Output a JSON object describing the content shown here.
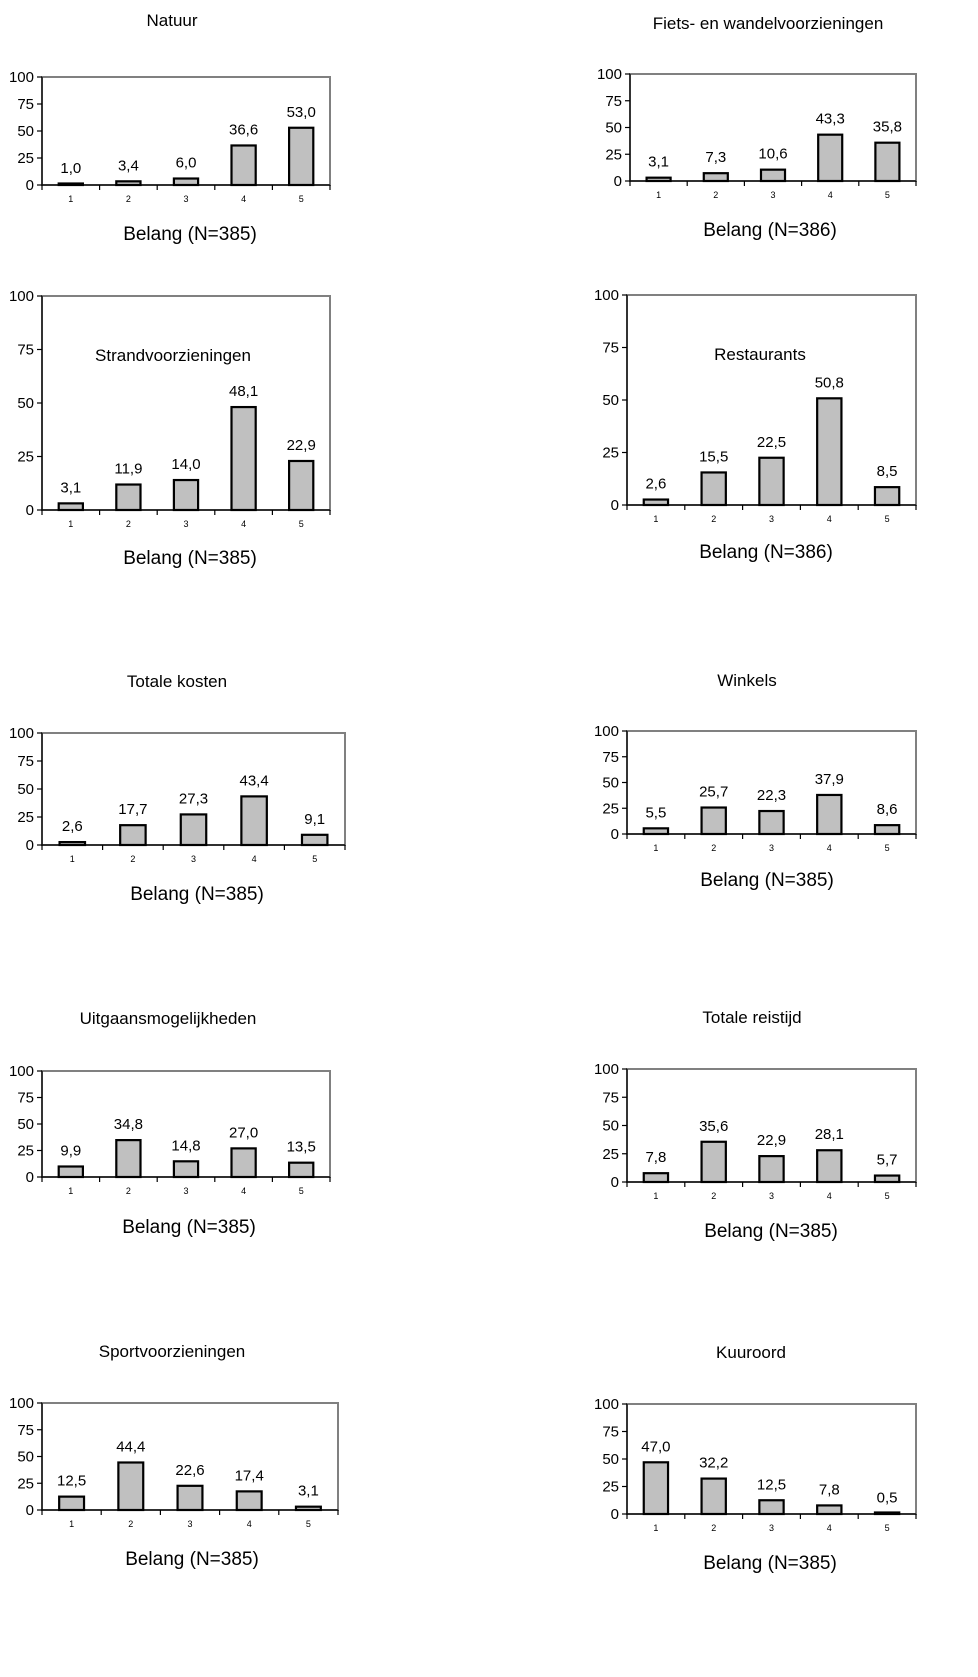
{
  "chart_data": [
    {
      "type": "bar",
      "title": "Natuur",
      "xlabel": "Belang (N=385)",
      "categories": [
        "1",
        "2",
        "3",
        "4",
        "5"
      ],
      "values": [
        1.0,
        3.4,
        6.0,
        36.6,
        53.0
      ],
      "value_labels": [
        "1,0",
        "3,4",
        "6,0",
        "36,6",
        "53,0"
      ],
      "yticks": [
        "0",
        "25",
        "50",
        "75",
        "100"
      ],
      "ylim": [
        0,
        100
      ],
      "grid": false,
      "legend": false
    },
    {
      "type": "bar",
      "title": "Fiets- en wandelvoorzieningen",
      "xlabel": "Belang (N=386)",
      "categories": [
        "1",
        "2",
        "3",
        "4",
        "5"
      ],
      "values": [
        3.1,
        7.3,
        10.6,
        43.3,
        35.8
      ],
      "value_labels": [
        "3,1",
        "7,3",
        "10,6",
        "43,3",
        "35,8"
      ],
      "yticks": [
        "0",
        "25",
        "50",
        "75",
        "100"
      ],
      "ylim": [
        0,
        100
      ],
      "grid": false,
      "legend": false
    },
    {
      "type": "bar",
      "title": "Strandvoorzieningen",
      "xlabel": "Belang (N=385)",
      "categories": [
        "1",
        "2",
        "3",
        "4",
        "5"
      ],
      "values": [
        3.1,
        11.9,
        14.0,
        48.1,
        22.9
      ],
      "value_labels": [
        "3,1",
        "11,9",
        "14,0",
        "48,1",
        "22,9"
      ],
      "yticks": [
        "0",
        "25",
        "50",
        "75",
        "100"
      ],
      "ylim": [
        0,
        100
      ],
      "grid": false,
      "legend": false
    },
    {
      "type": "bar",
      "title": "Restaurants",
      "xlabel": "Belang (N=386)",
      "categories": [
        "1",
        "2",
        "3",
        "4",
        "5"
      ],
      "values": [
        2.6,
        15.5,
        22.5,
        50.8,
        8.5
      ],
      "value_labels": [
        "2,6",
        "15,5",
        "22,5",
        "50,8",
        "8,5"
      ],
      "yticks": [
        "0",
        "25",
        "50",
        "75",
        "100"
      ],
      "ylim": [
        0,
        100
      ],
      "grid": false,
      "legend": false
    },
    {
      "type": "bar",
      "title": "Totale kosten",
      "xlabel": "Belang (N=385)",
      "categories": [
        "1",
        "2",
        "3",
        "4",
        "5"
      ],
      "values": [
        2.6,
        17.7,
        27.3,
        43.4,
        9.1
      ],
      "value_labels": [
        "2,6",
        "17,7",
        "27,3",
        "43,4",
        "9,1"
      ],
      "yticks": [
        "0",
        "25",
        "50",
        "75",
        "100"
      ],
      "ylim": [
        0,
        100
      ],
      "grid": false,
      "legend": false
    },
    {
      "type": "bar",
      "title": "Winkels",
      "xlabel": "Belang (N=385)",
      "categories": [
        "1",
        "2",
        "3",
        "4",
        "5"
      ],
      "values": [
        5.5,
        25.7,
        22.3,
        37.9,
        8.6
      ],
      "value_labels": [
        "5,5",
        "25,7",
        "22,3",
        "37,9",
        "8,6"
      ],
      "yticks": [
        "0",
        "25",
        "50",
        "75",
        "100"
      ],
      "ylim": [
        0,
        100
      ],
      "grid": false,
      "legend": false
    },
    {
      "type": "bar",
      "title": "Uitgaansmogelijkheden",
      "xlabel": "Belang (N=385)",
      "categories": [
        "1",
        "2",
        "3",
        "4",
        "5"
      ],
      "values": [
        9.9,
        34.8,
        14.8,
        27.0,
        13.5
      ],
      "value_labels": [
        "9,9",
        "34,8",
        "14,8",
        "27,0",
        "13,5"
      ],
      "yticks": [
        "0",
        "25",
        "50",
        "75",
        "100"
      ],
      "ylim": [
        0,
        100
      ],
      "grid": false,
      "legend": false
    },
    {
      "type": "bar",
      "title": "Totale reistijd",
      "xlabel": "Belang (N=385)",
      "categories": [
        "1",
        "2",
        "3",
        "4",
        "5"
      ],
      "values": [
        7.8,
        35.6,
        22.9,
        28.1,
        5.7
      ],
      "value_labels": [
        "7,8",
        "35,6",
        "22,9",
        "28,1",
        "5,7"
      ],
      "yticks": [
        "0",
        "25",
        "50",
        "75",
        "100"
      ],
      "ylim": [
        0,
        100
      ],
      "grid": false,
      "legend": false
    },
    {
      "type": "bar",
      "title": "Sportvoorzieningen",
      "xlabel": "Belang (N=385)",
      "categories": [
        "1",
        "2",
        "3",
        "4",
        "5"
      ],
      "values": [
        12.5,
        44.4,
        22.6,
        17.4,
        3.1
      ],
      "value_labels": [
        "12,5",
        "44,4",
        "22,6",
        "17,4",
        "3,1"
      ],
      "yticks": [
        "0",
        "25",
        "50",
        "75",
        "100"
      ],
      "ylim": [
        0,
        100
      ],
      "grid": false,
      "legend": false
    },
    {
      "type": "bar",
      "title": "Kuuroord",
      "xlabel": "Belang (N=385)",
      "categories": [
        "1",
        "2",
        "3",
        "4",
        "5"
      ],
      "values": [
        47.0,
        32.2,
        12.5,
        7.8,
        0.5
      ],
      "value_labels": [
        "47,0",
        "32,2",
        "12,5",
        "7,8",
        "0,5"
      ],
      "yticks": [
        "0",
        "25",
        "50",
        "75",
        "100"
      ],
      "ylim": [
        0,
        100
      ],
      "grid": false,
      "legend": false
    }
  ]
}
